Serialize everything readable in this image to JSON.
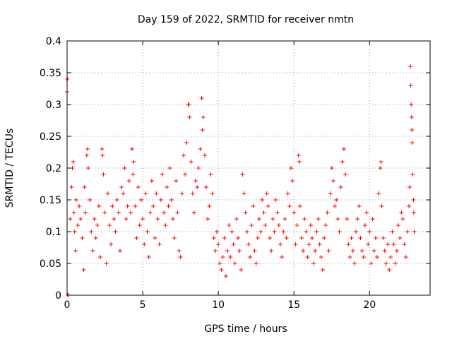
{
  "chart_data": {
    "type": "scatter",
    "title": "Day 159 of 2022, SRMTID for receiver nmtn",
    "xlabel": "GPS time / hours",
    "ylabel": "SRMTID / TECUs",
    "xlim": [
      0,
      24
    ],
    "ylim": [
      0,
      0.4
    ],
    "xticks": [
      0,
      5,
      10,
      15,
      20
    ],
    "xtick_labels": [
      "0",
      "5",
      "10",
      "15",
      "20"
    ],
    "yticks": [
      0,
      0.05,
      0.1,
      0.15,
      0.2,
      0.25,
      0.3,
      0.35,
      0.4
    ],
    "ytick_labels": [
      "0",
      "0.05",
      "0.1",
      "0.15",
      "0.2",
      "0.25",
      "0.3",
      "0.35",
      "0.4"
    ],
    "grid": true,
    "marker": "plus",
    "series": [
      {
        "name": "SRMTID",
        "color": "#ff0000",
        "points": [
          [
            0.0,
            0.32
          ],
          [
            0.02,
            0.34
          ],
          [
            0.05,
            0.0
          ],
          [
            0.08,
            0.0
          ],
          [
            0.2,
            0.12
          ],
          [
            0.3,
            0.17
          ],
          [
            0.35,
            0.2
          ],
          [
            0.4,
            0.21
          ],
          [
            0.45,
            0.13
          ],
          [
            0.5,
            0.1
          ],
          [
            0.55,
            0.07
          ],
          [
            0.6,
            0.15
          ],
          [
            0.7,
            0.11
          ],
          [
            0.8,
            0.14
          ],
          [
            0.9,
            0.12
          ],
          [
            1.0,
            0.09
          ],
          [
            1.1,
            0.04
          ],
          [
            1.15,
            0.17
          ],
          [
            1.2,
            0.13
          ],
          [
            1.3,
            0.22
          ],
          [
            1.35,
            0.23
          ],
          [
            1.4,
            0.2
          ],
          [
            1.5,
            0.15
          ],
          [
            1.6,
            0.1
          ],
          [
            1.7,
            0.07
          ],
          [
            1.8,
            0.12
          ],
          [
            1.9,
            0.09
          ],
          [
            2.0,
            0.11
          ],
          [
            2.1,
            0.14
          ],
          [
            2.2,
            0.06
          ],
          [
            2.3,
            0.23
          ],
          [
            2.35,
            0.22
          ],
          [
            2.4,
            0.19
          ],
          [
            2.5,
            0.13
          ],
          [
            2.6,
            0.05
          ],
          [
            2.7,
            0.16
          ],
          [
            2.8,
            0.11
          ],
          [
            2.9,
            0.08
          ],
          [
            3.0,
            0.14
          ],
          [
            3.1,
            0.12
          ],
          [
            3.2,
            0.1
          ],
          [
            3.3,
            0.15
          ],
          [
            3.4,
            0.13
          ],
          [
            3.5,
            0.07
          ],
          [
            3.6,
            0.17
          ],
          [
            3.7,
            0.16
          ],
          [
            3.8,
            0.2
          ],
          [
            3.9,
            0.12
          ],
          [
            4.0,
            0.14
          ],
          [
            4.1,
            0.18
          ],
          [
            4.2,
            0.13
          ],
          [
            4.3,
            0.23
          ],
          [
            4.35,
            0.19
          ],
          [
            4.4,
            0.21
          ],
          [
            4.5,
            0.14
          ],
          [
            4.6,
            0.09
          ],
          [
            4.7,
            0.17
          ],
          [
            4.8,
            0.11
          ],
          [
            4.9,
            0.15
          ],
          [
            5.0,
            0.12
          ],
          [
            5.1,
            0.08
          ],
          [
            5.2,
            0.16
          ],
          [
            5.3,
            0.1
          ],
          [
            5.4,
            0.06
          ],
          [
            5.5,
            0.13
          ],
          [
            5.6,
            0.18
          ],
          [
            5.7,
            0.14
          ],
          [
            5.8,
            0.09
          ],
          [
            5.9,
            0.16
          ],
          [
            6.0,
            0.12
          ],
          [
            6.1,
            0.08
          ],
          [
            6.2,
            0.15
          ],
          [
            6.3,
            0.19
          ],
          [
            6.4,
            0.13
          ],
          [
            6.5,
            0.11
          ],
          [
            6.6,
            0.17
          ],
          [
            6.7,
            0.14
          ],
          [
            6.8,
            0.2
          ],
          [
            6.9,
            0.15
          ],
          [
            7.0,
            0.12
          ],
          [
            7.1,
            0.09
          ],
          [
            7.2,
            0.18
          ],
          [
            7.3,
            0.13
          ],
          [
            7.4,
            0.07
          ],
          [
            7.5,
            0.06
          ],
          [
            7.6,
            0.16
          ],
          [
            7.7,
            0.22
          ],
          [
            7.8,
            0.19
          ],
          [
            7.9,
            0.24
          ],
          [
            8.0,
            0.3
          ],
          [
            8.05,
            0.3
          ],
          [
            8.1,
            0.28
          ],
          [
            8.2,
            0.21
          ],
          [
            8.3,
            0.16
          ],
          [
            8.4,
            0.13
          ],
          [
            8.5,
            0.18
          ],
          [
            8.6,
            0.17
          ],
          [
            8.7,
            0.2
          ],
          [
            8.8,
            0.23
          ],
          [
            8.9,
            0.31
          ],
          [
            8.95,
            0.26
          ],
          [
            9.0,
            0.28
          ],
          [
            9.1,
            0.22
          ],
          [
            9.2,
            0.17
          ],
          [
            9.3,
            0.12
          ],
          [
            9.4,
            0.14
          ],
          [
            9.5,
            0.19
          ],
          [
            9.6,
            0.16
          ],
          [
            9.7,
            0.09
          ],
          [
            9.8,
            0.07
          ],
          [
            9.9,
            0.1
          ],
          [
            10.0,
            0.08
          ],
          [
            10.1,
            0.05
          ],
          [
            10.2,
            0.04
          ],
          [
            10.3,
            0.06
          ],
          [
            10.4,
            0.09
          ],
          [
            10.5,
            0.03
          ],
          [
            10.6,
            0.07
          ],
          [
            10.7,
            0.11
          ],
          [
            10.8,
            0.06
          ],
          [
            10.9,
            0.1
          ],
          [
            11.0,
            0.08
          ],
          [
            11.1,
            0.05
          ],
          [
            11.2,
            0.12
          ],
          [
            11.3,
            0.09
          ],
          [
            11.4,
            0.07
          ],
          [
            11.5,
            0.04
          ],
          [
            11.6,
            0.19
          ],
          [
            11.7,
            0.16
          ],
          [
            11.8,
            0.13
          ],
          [
            11.9,
            0.1
          ],
          [
            12.0,
            0.08
          ],
          [
            12.1,
            0.06
          ],
          [
            12.2,
            0.11
          ],
          [
            12.3,
            0.14
          ],
          [
            12.4,
            0.07
          ],
          [
            12.5,
            0.05
          ],
          [
            12.6,
            0.09
          ],
          [
            12.7,
            0.12
          ],
          [
            12.8,
            0.1
          ],
          [
            12.9,
            0.15
          ],
          [
            13.0,
            0.13
          ],
          [
            13.1,
            0.11
          ],
          [
            13.2,
            0.16
          ],
          [
            13.3,
            0.14
          ],
          [
            13.4,
            0.09
          ],
          [
            13.5,
            0.07
          ],
          [
            13.6,
            0.12
          ],
          [
            13.7,
            0.1
          ],
          [
            13.8,
            0.15
          ],
          [
            13.9,
            0.13
          ],
          [
            14.0,
            0.11
          ],
          [
            14.1,
            0.08
          ],
          [
            14.2,
            0.06
          ],
          [
            14.3,
            0.1
          ],
          [
            14.4,
            0.12
          ],
          [
            14.5,
            0.09
          ],
          [
            14.6,
            0.16
          ],
          [
            14.7,
            0.14
          ],
          [
            14.8,
            0.2
          ],
          [
            14.9,
            0.18
          ],
          [
            15.0,
            0.13
          ],
          [
            15.1,
            0.08
          ],
          [
            15.2,
            0.11
          ],
          [
            15.3,
            0.22
          ],
          [
            15.35,
            0.21
          ],
          [
            15.4,
            0.14
          ],
          [
            15.5,
            0.09
          ],
          [
            15.6,
            0.07
          ],
          [
            15.7,
            0.12
          ],
          [
            15.8,
            0.1
          ],
          [
            15.9,
            0.06
          ],
          [
            16.0,
            0.08
          ],
          [
            16.1,
            0.11
          ],
          [
            16.2,
            0.09
          ],
          [
            16.3,
            0.05
          ],
          [
            16.4,
            0.07
          ],
          [
            16.5,
            0.1
          ],
          [
            16.6,
            0.12
          ],
          [
            16.7,
            0.08
          ],
          [
            16.8,
            0.06
          ],
          [
            16.9,
            0.04
          ],
          [
            17.0,
            0.09
          ],
          [
            17.1,
            0.11
          ],
          [
            17.2,
            0.13
          ],
          [
            17.3,
            0.07
          ],
          [
            17.4,
            0.16
          ],
          [
            17.5,
            0.2
          ],
          [
            17.6,
            0.18
          ],
          [
            17.7,
            0.14
          ],
          [
            17.8,
            0.15
          ],
          [
            17.9,
            0.12
          ],
          [
            18.0,
            0.1
          ],
          [
            18.1,
            0.17
          ],
          [
            18.2,
            0.21
          ],
          [
            18.3,
            0.23
          ],
          [
            18.4,
            0.19
          ],
          [
            18.5,
            0.12
          ],
          [
            18.6,
            0.08
          ],
          [
            18.7,
            0.06
          ],
          [
            18.8,
            0.09
          ],
          [
            18.9,
            0.07
          ],
          [
            19.0,
            0.05
          ],
          [
            19.1,
            0.1
          ],
          [
            19.2,
            0.12
          ],
          [
            19.3,
            0.14
          ],
          [
            19.4,
            0.09
          ],
          [
            19.5,
            0.07
          ],
          [
            19.6,
            0.06
          ],
          [
            19.7,
            0.11
          ],
          [
            19.8,
            0.13
          ],
          [
            19.9,
            0.08
          ],
          [
            20.0,
            0.1
          ],
          [
            20.1,
            0.05
          ],
          [
            20.2,
            0.12
          ],
          [
            20.3,
            0.07
          ],
          [
            20.4,
            0.09
          ],
          [
            20.5,
            0.06
          ],
          [
            20.6,
            0.16
          ],
          [
            20.7,
            0.2
          ],
          [
            20.75,
            0.21
          ],
          [
            20.8,
            0.14
          ],
          [
            20.9,
            0.09
          ],
          [
            21.0,
            0.07
          ],
          [
            21.1,
            0.05
          ],
          [
            21.2,
            0.08
          ],
          [
            21.3,
            0.04
          ],
          [
            21.4,
            0.06
          ],
          [
            21.5,
            0.1
          ],
          [
            21.6,
            0.08
          ],
          [
            21.7,
            0.05
          ],
          [
            21.8,
            0.07
          ],
          [
            21.9,
            0.11
          ],
          [
            22.0,
            0.09
          ],
          [
            22.1,
            0.13
          ],
          [
            22.2,
            0.12
          ],
          [
            22.3,
            0.08
          ],
          [
            22.4,
            0.06
          ],
          [
            22.5,
            0.1
          ],
          [
            22.6,
            0.14
          ],
          [
            22.65,
            0.17
          ],
          [
            22.7,
            0.36
          ],
          [
            22.72,
            0.33
          ],
          [
            22.75,
            0.3
          ],
          [
            22.78,
            0.28
          ],
          [
            22.8,
            0.26
          ],
          [
            22.82,
            0.24
          ],
          [
            22.85,
            0.19
          ],
          [
            22.9,
            0.15
          ],
          [
            22.92,
            0.13
          ],
          [
            22.95,
            0.1
          ]
        ]
      }
    ]
  }
}
